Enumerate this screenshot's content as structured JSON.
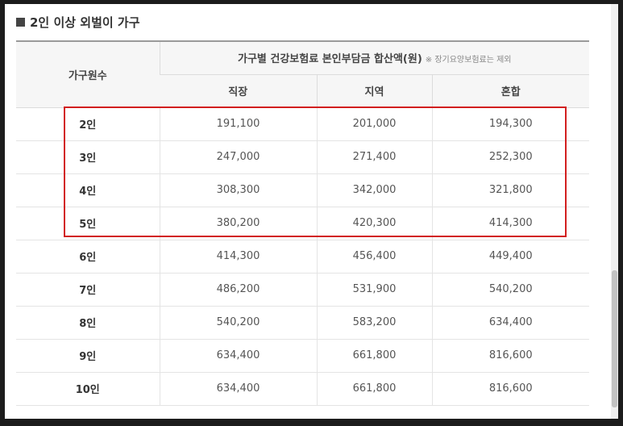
{
  "heading": "2인 이상 외벌이 가구",
  "table": {
    "row_header": "가구원수",
    "group_header": "가구별 건강보험료 본인부담금 합산액(원)",
    "group_note": "※ 장기요양보험료는 제외",
    "columns": [
      "직장",
      "지역",
      "혼합"
    ],
    "rows": [
      {
        "label": "2인",
        "values": [
          "191,100",
          "201,000",
          "194,300"
        ]
      },
      {
        "label": "3인",
        "values": [
          "247,000",
          "271,400",
          "252,300"
        ]
      },
      {
        "label": "4인",
        "values": [
          "308,300",
          "342,000",
          "321,800"
        ]
      },
      {
        "label": "5인",
        "values": [
          "380,200",
          "420,300",
          "414,300"
        ]
      },
      {
        "label": "6인",
        "values": [
          "414,300",
          "456,400",
          "449,400"
        ]
      },
      {
        "label": "7인",
        "values": [
          "486,200",
          "531,900",
          "540,200"
        ]
      },
      {
        "label": "8인",
        "values": [
          "540,200",
          "583,200",
          "634,400"
        ]
      },
      {
        "label": "9인",
        "values": [
          "634,400",
          "661,800",
          "816,600"
        ]
      },
      {
        "label": "10인",
        "values": [
          "634,400",
          "661,800",
          "816,600"
        ]
      }
    ]
  },
  "colors": {
    "highlight": "#d21f1f",
    "header_bg": "#f6f6f6"
  }
}
